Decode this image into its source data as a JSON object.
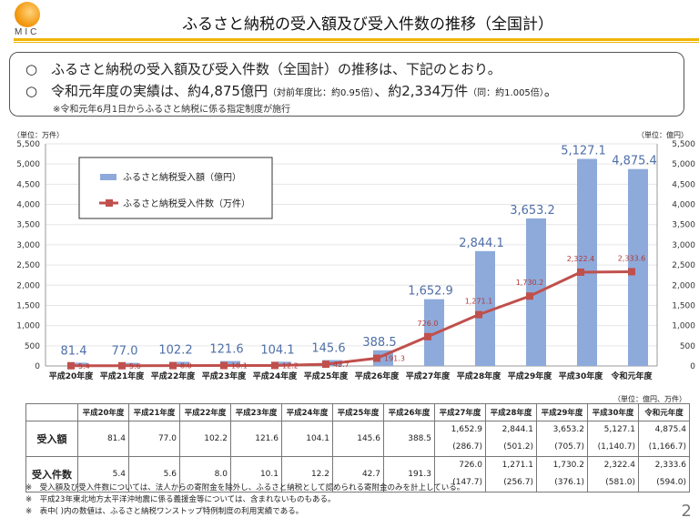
{
  "header": {
    "logo_text": "MIC",
    "title": "ふるさと納税の受入額及び受入件数の推移（全国計）"
  },
  "summary": {
    "bullet": "○",
    "line1": "ふるさと納税の受入額及び受入件数（全国計）の推移は、下記のとおり。",
    "line2_a": "令和元年度の実績は、約4,875億円",
    "line2_b": "（対前年度比：約0.95倍）",
    "line2_c": "、約2,334万件",
    "line2_d": "（同：約1.005倍）",
    "line2_e": "。",
    "note": "※令和元年6月1日からふるさと納税に係る指定制度が施行"
  },
  "chart_data": {
    "type": "bar+line",
    "left_unit": "（単位：万件）",
    "right_unit": "（単位：億円）",
    "ylim": [
      0,
      5500
    ],
    "yticks": [
      "0",
      "500",
      "1,000",
      "1,500",
      "2,000",
      "2,500",
      "3,000",
      "3,500",
      "4,000",
      "4,500",
      "5,000",
      "5,500"
    ],
    "grid": true,
    "legend_placement": "top-left",
    "categories": [
      "平成20年度",
      "平成21年度",
      "平成22年度",
      "平成23年度",
      "平成24年度",
      "平成25年度",
      "平成26年度",
      "平成27年度",
      "平成28年度",
      "平成29年度",
      "平成30年度",
      "令和元年度"
    ],
    "series": [
      {
        "name": "ふるさと納税受入額（億円）",
        "type": "bar",
        "color": "#8eaadb",
        "values": [
          81.4,
          77.0,
          102.2,
          121.6,
          104.1,
          145.6,
          388.5,
          1652.9,
          2844.1,
          3653.2,
          5127.1,
          4875.4
        ],
        "labels": [
          "81.4",
          "77.0",
          "102.2",
          "121.6",
          "104.1",
          "145.6",
          "388.5",
          "1,652.9",
          "2,844.1",
          "3,653.2",
          "5,127.1",
          "4,875.4"
        ]
      },
      {
        "name": "ふるさと納税受入件数（万件）",
        "type": "line",
        "color": "#c0504d",
        "values": [
          5.4,
          5.6,
          8.0,
          10.1,
          12.2,
          42.7,
          191.3,
          726.0,
          1271.1,
          1730.2,
          2322.4,
          2333.6
        ],
        "labels": [
          "5.4",
          "5.6",
          "8.0",
          "10.1",
          "12.2",
          "42.7",
          "191.3",
          "726.0",
          "1,271.1",
          "1,730.2",
          "2,322.4",
          "2,333.6"
        ]
      }
    ]
  },
  "table": {
    "unit": "（単位：億円、万件）",
    "headers": [
      "平成20年度",
      "平成21年度",
      "平成22年度",
      "平成23年度",
      "平成24年度",
      "平成25年度",
      "平成26年度",
      "平成27年度",
      "平成28年度",
      "平成29年度",
      "平成30年度",
      "令和元年度"
    ],
    "rows": [
      {
        "label": "受入額",
        "values": [
          "81.4",
          "77.0",
          "102.2",
          "121.6",
          "104.1",
          "145.6",
          "388.5",
          "1,652.9",
          "2,844.1",
          "3,653.2",
          "5,127.1",
          "4,875.4"
        ],
        "sub": [
          "",
          "",
          "",
          "",
          "",
          "",
          "",
          "(286.7)",
          "(501.2)",
          "(705.7)",
          "(1,140.7)",
          "(1,166.7)"
        ]
      },
      {
        "label": "受入件数",
        "values": [
          "5.4",
          "5.6",
          "8.0",
          "10.1",
          "12.2",
          "42.7",
          "191.3",
          "726.0",
          "1,271.1",
          "1,730.2",
          "2,322.4",
          "2,333.6"
        ],
        "sub": [
          "",
          "",
          "",
          "",
          "",
          "",
          "",
          "(147.7)",
          "(256.7)",
          "(376.1)",
          "(581.0)",
          "(594.0)"
        ]
      }
    ]
  },
  "notes": [
    "※　受入額及び受入件数については、法人からの寄附金を除外し、ふるさと納税として認められる寄附金のみを計上している。",
    "※　平成23年東北地方太平洋沖地震に係る義援金等については、含まれないものもある。",
    "※　表中(  )内の数値は、ふるさと納税ワンストップ特例制度の利用実績である。"
  ],
  "page_number": "2"
}
